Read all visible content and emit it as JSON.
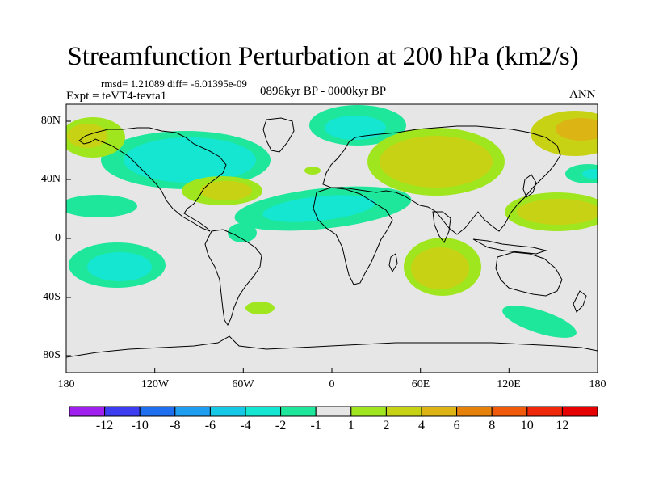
{
  "title": "Streamfunction Perturbation at 200 hPa (km2/s)",
  "stats": "rmsd= 1.21089 diff= -6.01395e-09",
  "experiment": "Expt = teVT4-tevta1",
  "period": "0896kyr BP - 0000kyr BP",
  "season": "ANN",
  "axes": {
    "y_labels": [
      "80N",
      "40N",
      "0",
      "40S",
      "80S"
    ],
    "x_labels": [
      "180",
      "120W",
      "60W",
      "0",
      "60E",
      "120E",
      "180"
    ]
  },
  "colorbar": {
    "labels": [
      "-12",
      "-10",
      "-8",
      "-6",
      "-4",
      "-2",
      "-1",
      "1",
      "2",
      "4",
      "6",
      "8",
      "10",
      "12"
    ],
    "colors": [
      "#a020f0",
      "#3c3cf0",
      "#1e6ef0",
      "#1e9ef0",
      "#14c8e6",
      "#14e6d2",
      "#1ee69b",
      "#e6e6e6",
      "#a0e61e",
      "#c8d214",
      "#dcb414",
      "#e6820a",
      "#f05a0a",
      "#f0280a",
      "#e60000"
    ]
  },
  "colors": {
    "neutral": "#e6e6e6",
    "blue_green": "#14e6d2",
    "green": "#1ee69b",
    "lime": "#a0e61e",
    "yellow": "#c8d214",
    "orange": "#dcb414",
    "cyan": "#14c8e6"
  }
}
